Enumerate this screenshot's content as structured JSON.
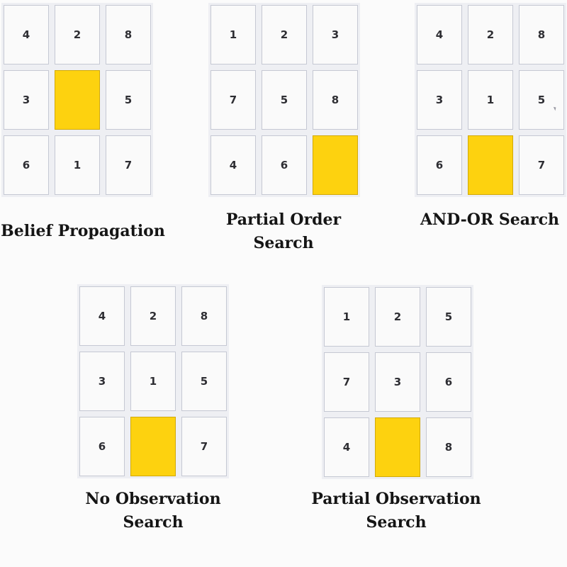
{
  "colors": {
    "blank_tile": "#fdd20f",
    "tile_border": "#c5c8d3",
    "background": "#fbfbfb"
  },
  "panels": [
    {
      "caption": [
        "Belief Propagation"
      ],
      "grid": [
        "4",
        "2",
        "8",
        "3",
        "",
        "5",
        "6",
        "1",
        "7"
      ]
    },
    {
      "caption": [
        "Partial Order",
        "Search"
      ],
      "grid": [
        "1",
        "2",
        "3",
        "7",
        "5",
        "8",
        "4",
        "6",
        ""
      ]
    },
    {
      "caption": [
        "AND-OR Search"
      ],
      "grid": [
        "4",
        "2",
        "8",
        "3",
        "1",
        "5",
        "6",
        "",
        "7"
      ]
    },
    {
      "caption": [
        "No Observation",
        "Search"
      ],
      "grid": [
        "4",
        "2",
        "8",
        "3",
        "1",
        "5",
        "6",
        "",
        "7"
      ]
    },
    {
      "caption": [
        "Partial Observation",
        "Search"
      ],
      "grid": [
        "1",
        "2",
        "5",
        "7",
        "3",
        "6",
        "4",
        "",
        "8"
      ]
    }
  ]
}
